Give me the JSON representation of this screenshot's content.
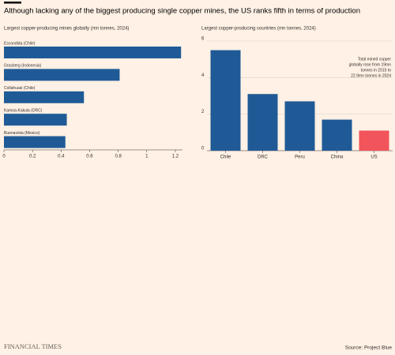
{
  "title": "Although lacking any of the biggest producing single copper mines, the US ranks fifth in terms of production",
  "chart_data": [
    {
      "type": "barh",
      "subtitle": "Largest copper-producing mines globally (mn tonnes, 2024)",
      "categories": [
        "Escondida (Chile)",
        "Grasberg (Indonesia)",
        "Collahuasi (Chile)",
        "Kamoa-Kakula (DRC)",
        "Buenavista (Mexico)"
      ],
      "values": [
        1.24,
        0.81,
        0.56,
        0.44,
        0.43
      ],
      "color": "#1f5a96",
      "xlim": [
        0,
        1.25
      ],
      "xticks": [
        0,
        0.2,
        0.4,
        0.6,
        0.8,
        1,
        1.2
      ],
      "grid": false
    },
    {
      "type": "bar",
      "subtitle": "Largest copper-producing countries (mn tonnes, 2024)",
      "categories": [
        "Chile",
        "DRC",
        "Peru",
        "China",
        "US"
      ],
      "values": [
        5.5,
        3.1,
        2.7,
        1.7,
        1.1
      ],
      "colors": [
        "#1f5a96",
        "#1f5a96",
        "#1f5a96",
        "#1f5a96",
        "#f2545b"
      ],
      "ylim": [
        0,
        6
      ],
      "yticks": [
        0,
        2,
        4,
        6
      ],
      "grid": true,
      "annotation": [
        "Total mined copper",
        "globally rose from 19mn",
        "tonnes in 2015 to",
        "22.9mn tonnes in 2024"
      ]
    }
  ],
  "brand": "FINANCIAL TIMES",
  "source": "Source: Project Blue"
}
